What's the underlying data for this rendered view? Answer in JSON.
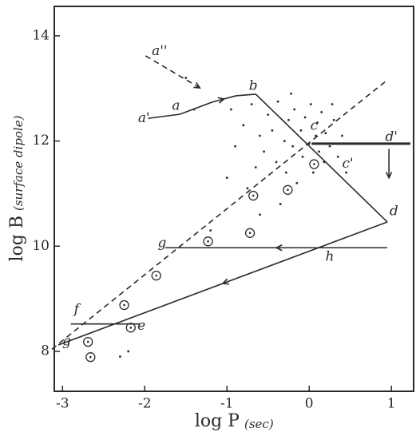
{
  "chart_data": {
    "type": "scatter",
    "xlabel": "log P",
    "xlabel_unit": "(sec)",
    "ylabel": "log B",
    "ylabel_unit": "(surface dipole)",
    "xlim": [
      -3.1,
      1.27
    ],
    "ylim": [
      7.24,
      14.56
    ],
    "xticks": [
      -3,
      -2,
      -1,
      0,
      1
    ],
    "yticks": [
      8,
      10,
      12,
      14
    ],
    "color": "#2a2a2a",
    "series": [
      {
        "style": "solid",
        "x": [
          -1.96,
          -1.57,
          -1.18,
          -0.89,
          -0.65
        ],
        "values": [
          12.43,
          12.51,
          12.74,
          12.86,
          12.89
        ],
        "arrow": "mid"
      },
      {
        "style": "solid",
        "x": [
          -0.65,
          0.95
        ],
        "values": [
          12.89,
          10.46
        ]
      },
      {
        "style": "solid",
        "x": [
          0.95,
          -3.05
        ],
        "values": [
          10.46,
          8.12
        ],
        "arrow": "mid"
      },
      {
        "style": "thick",
        "x": [
          0.03,
          1.23
        ],
        "values": [
          11.95,
          11.95
        ]
      },
      {
        "style": "solid",
        "x": [
          0.97,
          0.97
        ],
        "values": [
          11.85,
          11.3
        ],
        "arrow": "end"
      },
      {
        "style": "solid",
        "x": [
          0.95,
          -1.75
        ],
        "values": [
          9.97,
          9.97
        ],
        "arrow": "mid"
      },
      {
        "style": "solid",
        "x": [
          -2.9,
          -2.06
        ],
        "values": [
          8.52,
          8.52
        ]
      },
      {
        "style": "dashed",
        "x": [
          -3.13,
          0.95
        ],
        "values": [
          8.04,
          13.16
        ]
      },
      {
        "style": "dashed",
        "x": [
          -1.99,
          -1.33
        ],
        "values": [
          13.62,
          13.01
        ],
        "arrow": "end"
      },
      {
        "style": "dot",
        "x": [
          -0.95,
          -0.8,
          -0.7,
          -0.6,
          -0.55,
          -0.5,
          -0.45,
          -0.4,
          -0.38,
          -0.3,
          -0.28,
          -0.25,
          -0.2,
          -0.18,
          -0.15,
          -0.1,
          -0.08,
          -0.05,
          0.0,
          0.02,
          0.05,
          0.08,
          0.1,
          0.12,
          0.15,
          0.18,
          0.2,
          0.25,
          0.3,
          0.35,
          0.4,
          -0.65,
          -0.75,
          -0.9,
          -1.0,
          -0.35,
          -0.6,
          -1.2,
          -2.2,
          -2.3,
          -1.4,
          -1.5,
          0.28,
          -0.22,
          0.45
        ],
        "values": [
          12.6,
          12.3,
          12.7,
          12.1,
          11.8,
          12.5,
          12.2,
          11.6,
          12.75,
          12.0,
          11.4,
          12.4,
          11.9,
          12.6,
          11.2,
          12.2,
          11.7,
          12.45,
          11.95,
          12.7,
          11.4,
          12.1,
          12.35,
          11.8,
          12.55,
          11.6,
          12.15,
          11.9,
          12.4,
          11.7,
          12.1,
          11.5,
          11.1,
          11.9,
          11.3,
          10.8,
          10.6,
          10.3,
          8.0,
          7.9,
          12.6,
          13.2,
          12.7,
          12.9,
          11.4
        ]
      },
      {
        "style": "circle",
        "x": [
          0.06,
          -0.26,
          -0.68,
          -0.72,
          -1.23,
          -1.86,
          -2.25,
          -2.17,
          -2.69,
          -2.66
        ],
        "values": [
          11.56,
          11.07,
          10.96,
          10.25,
          10.09,
          9.44,
          8.88,
          8.45,
          8.18,
          7.89
        ]
      },
      {
        "style": "label",
        "labels": [
          "a''",
          "a'",
          "a",
          "b",
          "c",
          "c'",
          "d'",
          "d",
          "h",
          "g",
          "f",
          "e",
          "g"
        ],
        "x": [
          -1.82,
          -2.01,
          -1.62,
          -0.68,
          0.06,
          0.47,
          1.0,
          1.03,
          0.25,
          -1.79,
          -2.83,
          -2.04,
          -2.95
        ],
        "values": [
          13.7,
          12.43,
          12.66,
          13.04,
          12.28,
          11.56,
          12.07,
          10.66,
          9.79,
          10.05,
          8.79,
          8.48,
          8.18
        ]
      }
    ]
  }
}
